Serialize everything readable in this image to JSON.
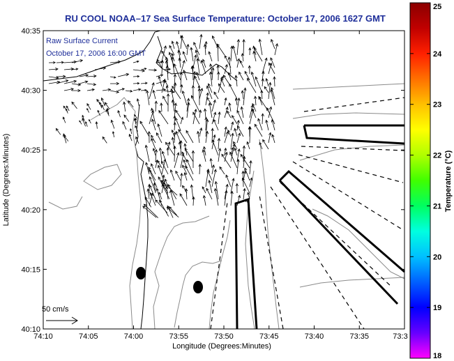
{
  "header": {
    "title": "RU COOL  NOAA–17  Sea Surface Temperature:  October 17, 2006 1627 GMT"
  },
  "inset": {
    "line1": "Raw Surface Current",
    "line2": "October 17, 2006 16:00 GMT"
  },
  "scale_bar": {
    "label": "50 cm/s"
  },
  "map": {
    "xlabel": "Longitude (Degrees:Minutes)",
    "ylabel": "Latitude (Degrees:Minutes)",
    "x_ticks": [
      "74:10",
      "74:05",
      "74:00",
      "73:55",
      "73:50",
      "73:45",
      "73:40",
      "73:35",
      "73:3"
    ],
    "y_ticks": [
      "40:35",
      "40:30",
      "40:25",
      "40:20",
      "40:15",
      "40:10"
    ],
    "land_color": "#ffffff",
    "contour_color": "#8a8a8a",
    "vector_color": "#000000"
  },
  "colorbar": {
    "label": "Temperature (°C)",
    "ticks": [
      "25",
      "24",
      "23",
      "22",
      "21",
      "20",
      "19",
      "18"
    ],
    "min": 18,
    "max": 25,
    "colormap": [
      "#ff00ff",
      "#6600ff",
      "#0000ff",
      "#0060ff",
      "#00c0ff",
      "#00ffe0",
      "#00ff60",
      "#40ff00",
      "#b0ff00",
      "#ffff00",
      "#ffc000",
      "#ff7000",
      "#ff2000",
      "#c00000",
      "#8b0000"
    ]
  }
}
